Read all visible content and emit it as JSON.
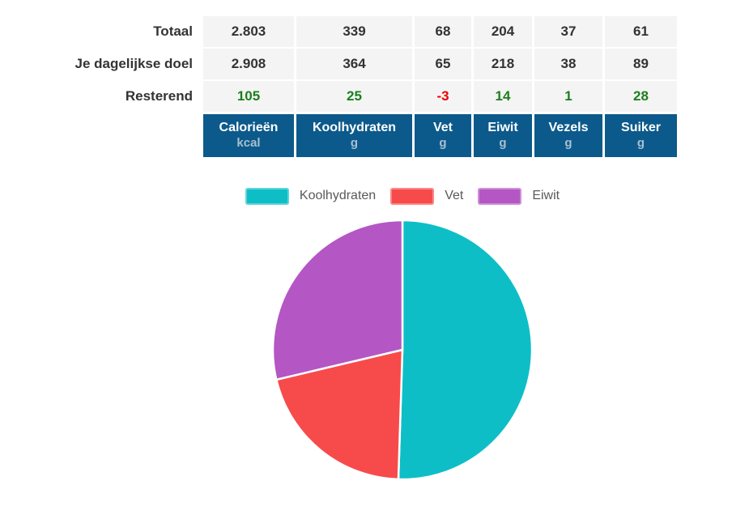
{
  "colors": {
    "header_bg": "#0C5A8B",
    "header_text": "#FFFFFF",
    "header_unit": "#A9BFD2",
    "row_bg": "#F4F4F4",
    "value_text": "#333333",
    "positive": "#1E7D1E",
    "negative": "#E80000",
    "legend_text": "#58595B",
    "pie_stroke": "#FFFFFF"
  },
  "chart_data": [
    {
      "type": "table",
      "columns": [
        {
          "name": "Calorieën",
          "unit": "kcal"
        },
        {
          "name": "Koolhydraten",
          "unit": "g"
        },
        {
          "name": "Vet",
          "unit": "g"
        },
        {
          "name": "Eiwit",
          "unit": "g"
        },
        {
          "name": "Vezels",
          "unit": "g"
        },
        {
          "name": "Suiker",
          "unit": "g"
        }
      ],
      "rows": [
        {
          "label": "Totaal",
          "values": [
            "2.803",
            "339",
            "68",
            "204",
            "37",
            "61"
          ]
        },
        {
          "label": "Je dagelijkse doel",
          "values": [
            "2.908",
            "364",
            "65",
            "218",
            "38",
            "89"
          ]
        },
        {
          "label": "Resterend",
          "values": [
            "105",
            "25",
            "-3",
            "14",
            "1",
            "28"
          ],
          "signed_colors": true
        }
      ]
    },
    {
      "type": "pie",
      "legend_position": "top",
      "start_angle_deg": 0,
      "slices": [
        {
          "label": "Koolhydraten",
          "percent": 50.5,
          "color": "#0EBEC7"
        },
        {
          "label": "Vet",
          "percent": 20.8,
          "color": "#F74B4B"
        },
        {
          "label": "Eiwit",
          "percent": 28.7,
          "color": "#B456C4"
        }
      ]
    }
  ]
}
